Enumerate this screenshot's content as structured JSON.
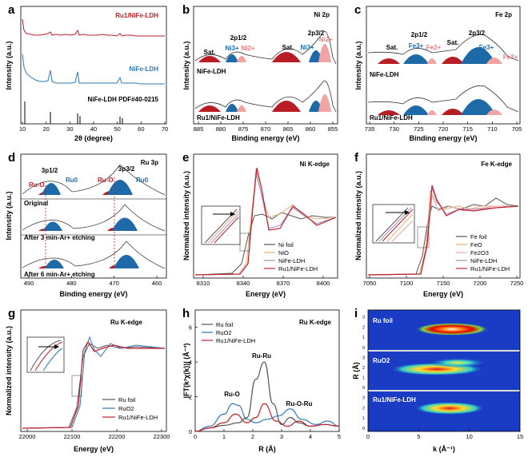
{
  "colors": {
    "red": "#c0202a",
    "blue": "#2e78b7",
    "pink": "#f2a3a3",
    "dark_red": "#b81c24",
    "dark_blue": "#1e6aa8",
    "gray": "#555555",
    "orange": "#e3b079",
    "purple": "#a88fc4"
  },
  "panels": {
    "a": {
      "label": "a",
      "xlabel": "2θ (degree)",
      "ylabel": "Intensity (a.u.)",
      "xticks": [
        "10",
        "20",
        "30",
        "40",
        "50",
        "60",
        "70"
      ],
      "legend": [
        "Ru1/NiFe-LDH",
        "NiFe-LDH",
        "NiFe-LDH PDF#40-0215"
      ]
    },
    "b": {
      "label": "b",
      "title": "Ni 2p",
      "xlabel": "Binding energy (eV)",
      "ylabel": "Intensity (a.u.)",
      "xticks": [
        "885",
        "880",
        "875",
        "870",
        "865",
        "860",
        "855"
      ],
      "annotations": [
        "2p1/2",
        "2p3/2",
        "Sat.",
        "Ni3+",
        "Ni2+",
        "Sat.",
        "Ni3+",
        "Ni2+"
      ],
      "samples": [
        "NiFe-LDH",
        "Ru1/NiFe-LDH"
      ]
    },
    "c": {
      "label": "c",
      "title": "Fe 2p",
      "xlabel": "Binding energy (eV)",
      "ylabel": "Intensity (a.u.)",
      "xticks": [
        "735",
        "730",
        "725",
        "720",
        "715",
        "710",
        "705"
      ],
      "annotations": [
        "2p1/2",
        "2p3/2",
        "Sat.",
        "Fe3+",
        "Fe2+",
        "Sat.",
        "Fe3+",
        "Fe2+"
      ],
      "samples": [
        "NiFe-LDH",
        "Ru1/NiFe-LDH"
      ]
    },
    "d": {
      "label": "d",
      "title": "Ru 3p",
      "xlabel": "Binding energy (eV)",
      "ylabel": "Intensity (a.u.)",
      "xticks": [
        "490",
        "480",
        "470",
        "460"
      ],
      "annotations": [
        "3p1/2",
        "3p3/2",
        "Ru-O",
        "Ru0",
        "Ru-O",
        "Ru0"
      ],
      "samples": [
        "Original",
        "After 3 min-Ar+ etching",
        "After 6 min-Ar+ etching"
      ]
    },
    "e": {
      "label": "e",
      "title": "Ni K-edge",
      "xlabel": "Energy (eV)",
      "ylabel": "Normalized intensity (a.u.)",
      "xticks": [
        "8310",
        "8340",
        "8370",
        "8400"
      ],
      "legend": [
        "Ni foil",
        "NiO",
        "NiFe-LDH",
        "Ru1/NiFe-LDH"
      ]
    },
    "f": {
      "label": "f",
      "title": "Fe K-edge",
      "xlabel": "Energy (eV)",
      "ylabel": "Normalized intensity (a.u.)",
      "xticks": [
        "7050",
        "7100",
        "7150",
        "7200",
        "7250"
      ],
      "legend": [
        "Fe foil",
        "FeO",
        "Fe2O3",
        "NiFe-LDH",
        "Ru1/NiFe-LDH"
      ]
    },
    "g": {
      "label": "g",
      "title": "Ru K-edge",
      "xlabel": "Energy (eV)",
      "ylabel": "Normalized intensity (a.u.)",
      "xticks": [
        "22000",
        "22100",
        "22200",
        "22300"
      ],
      "legend": [
        "Ru foil",
        "RuO2",
        "Ru1/NiFe-LDH"
      ]
    },
    "h": {
      "label": "h",
      "title": "Ru K-edge",
      "xlabel": "R (Å)",
      "ylabel": "|FT(k²χ(k))| (Å⁻³)",
      "xticks": [
        "0",
        "1",
        "2",
        "3",
        "4",
        "5"
      ],
      "yticks": [
        "0",
        "2",
        "4",
        "6"
      ],
      "annotations": [
        "Ru-Ru",
        "Ru-O",
        "Ru-O-Ru"
      ],
      "legend": [
        "Ru foil",
        "RuO2",
        "Ru1/NiFe-LDH"
      ]
    },
    "i": {
      "label": "i",
      "xlabel": "k (Å⁻¹)",
      "ylabel": "R (Å)",
      "xticks": [
        "0",
        "5",
        "10",
        "15"
      ],
      "yticks": [
        "0",
        "1",
        "2",
        "3"
      ],
      "rows": [
        "Ru foil",
        "RuO2",
        "Ru1/NiFe-LDH"
      ]
    }
  },
  "chart_data": [
    {
      "type": "line",
      "panel": "h",
      "xlabel": "R (Å)",
      "ylabel": "|FT(k²χ(k))| (Å⁻³)",
      "xlim": [
        0,
        5
      ],
      "ylim": [
        0,
        7
      ],
      "series": [
        {
          "name": "Ru foil",
          "x": [
            0,
            0.5,
            1,
            1.5,
            1.8,
            2.1,
            2.4,
            2.7,
            3.0,
            3.3,
            3.6,
            4,
            4.5,
            5
          ],
          "y": [
            0,
            0.2,
            0.35,
            0.5,
            0.8,
            3.0,
            4.0,
            1.6,
            0.4,
            0.8,
            0.5,
            0.3,
            0.4,
            0.3
          ]
        },
        {
          "name": "RuO2",
          "x": [
            0,
            0.5,
            1,
            1.3,
            1.5,
            1.8,
            2.1,
            2.5,
            2.9,
            3.3,
            3.7,
            4.2,
            4.6,
            5
          ],
          "y": [
            0,
            0.3,
            1.0,
            1.6,
            1.5,
            0.7,
            0.5,
            0.7,
            0.9,
            1.3,
            0.7,
            0.4,
            0.6,
            0.3
          ]
        },
        {
          "name": "Ru1/NiFe-LDH",
          "x": [
            0,
            0.5,
            1,
            1.4,
            1.8,
            2.1,
            2.4,
            2.8,
            3.2,
            3.6,
            4,
            4.5,
            5
          ],
          "y": [
            0,
            0.2,
            0.5,
            1.0,
            0.5,
            0.8,
            1.6,
            0.6,
            0.3,
            0.6,
            0.3,
            0.4,
            0.3
          ]
        }
      ]
    }
  ]
}
